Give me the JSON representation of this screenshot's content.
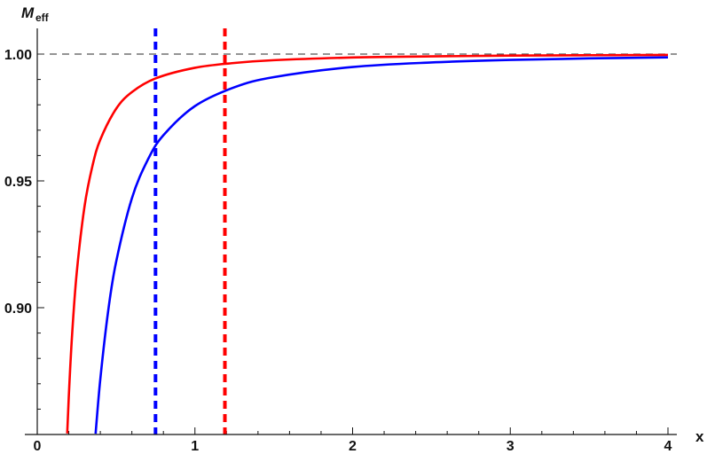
{
  "chart_data": {
    "type": "line",
    "title": "",
    "xlabel": "x",
    "ylabel": "M",
    "ylabel_sub": "eff",
    "xlim": [
      0,
      4.05
    ],
    "ylim": [
      0.85,
      1.01
    ],
    "x_ticks": [
      0,
      1,
      2,
      3,
      4
    ],
    "x_tick_labels": [
      "0",
      "1",
      "2",
      "3",
      "4"
    ],
    "y_ticks": [
      0.9,
      0.95,
      1.0
    ],
    "y_tick_labels": [
      "0.90",
      "0.95",
      "1.00"
    ],
    "grid": false,
    "reference_line": {
      "y": 1.0,
      "color": "#555555",
      "style": "dashed"
    },
    "vertical_lines": [
      {
        "x": 0.75,
        "color": "#0000ff",
        "style": "dashed"
      },
      {
        "x": 1.19,
        "color": "#ff0000",
        "style": "dashed"
      }
    ],
    "series": [
      {
        "color": "#ff0000",
        "x": [
          0.19,
          0.2,
          0.22,
          0.25,
          0.3,
          0.35,
          0.4,
          0.5,
          0.6,
          0.75,
          1,
          1.25,
          1.5,
          2,
          2.5,
          3,
          3.5,
          4
        ],
        "y": [
          0.8504,
          0.865,
          0.8884,
          0.9136,
          0.94,
          0.9559,
          0.9663,
          0.9784,
          0.985,
          0.9904,
          0.9946,
          0.9965,
          0.9976,
          0.99865,
          0.9991,
          0.9994,
          0.99956,
          0.99966
        ]
      },
      {
        "color": "#0000ff",
        "x": [
          0.37,
          0.4,
          0.45,
          0.5,
          0.6,
          0.7,
          0.8,
          1,
          1.25,
          1.5,
          2,
          2.5,
          3,
          3.5,
          4
        ],
        "y": [
          0.8503,
          0.8719,
          0.8988,
          0.918,
          0.9431,
          0.9582,
          0.968,
          0.9795,
          0.9869,
          0.9909,
          0.9949,
          0.9967,
          0.9977,
          0.9983,
          0.9987
        ]
      }
    ]
  }
}
